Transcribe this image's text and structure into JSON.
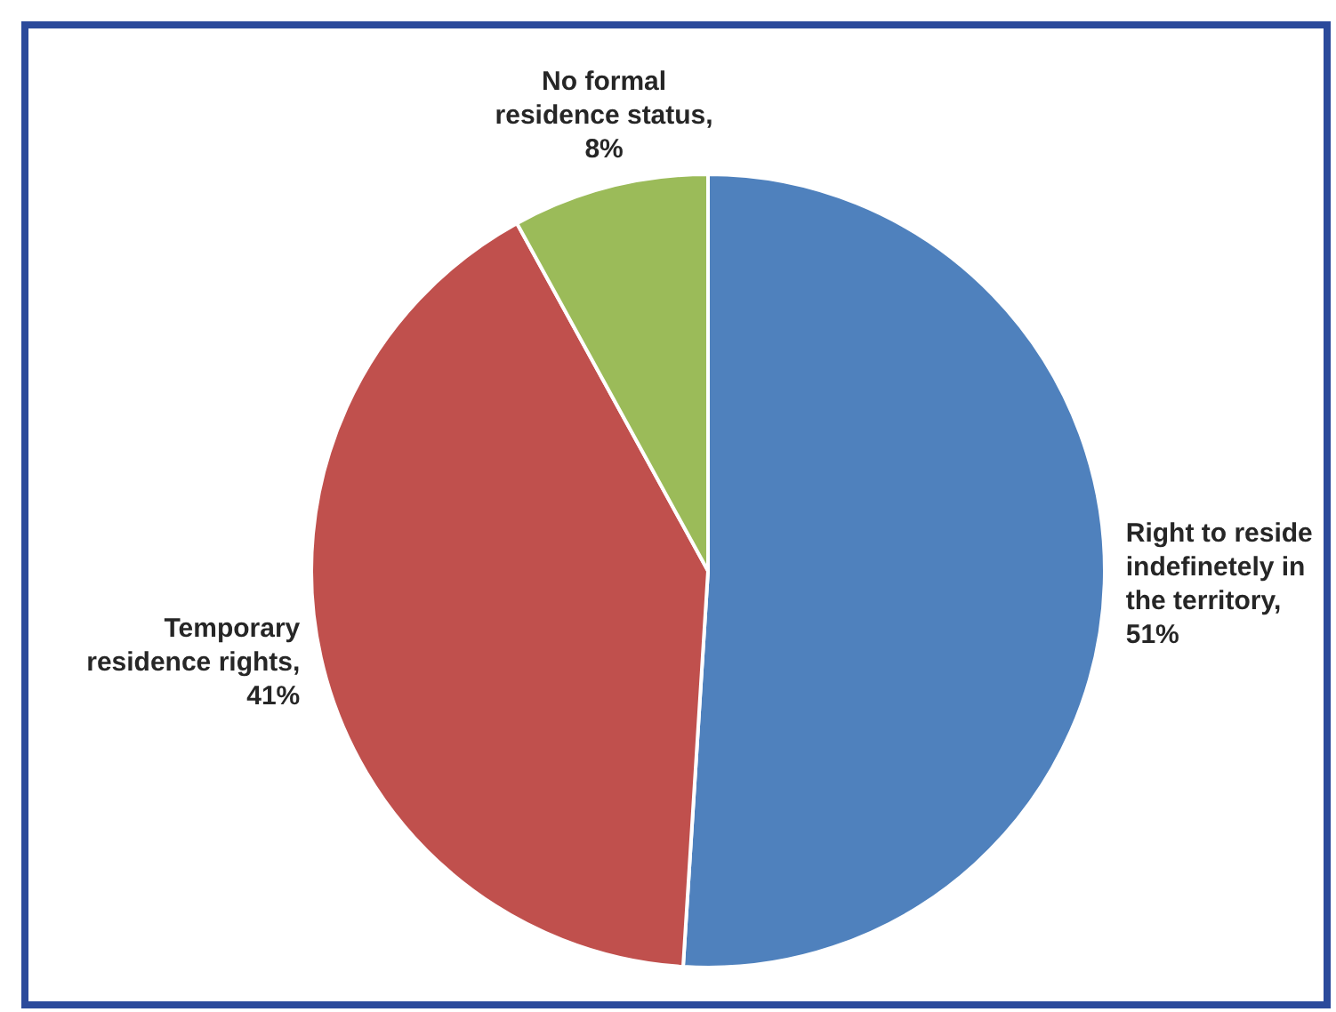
{
  "chart_data": {
    "type": "pie",
    "categories": [
      "Right to reside indefinetely in the territory",
      "Temporary residence rights",
      "No formal residence status"
    ],
    "values": [
      51,
      41,
      8
    ],
    "value_labels": [
      ", 51%",
      ", 41%",
      ", 8%"
    ],
    "colors": [
      "#4f81bd",
      "#c0504d",
      "#9bbb59"
    ]
  }
}
